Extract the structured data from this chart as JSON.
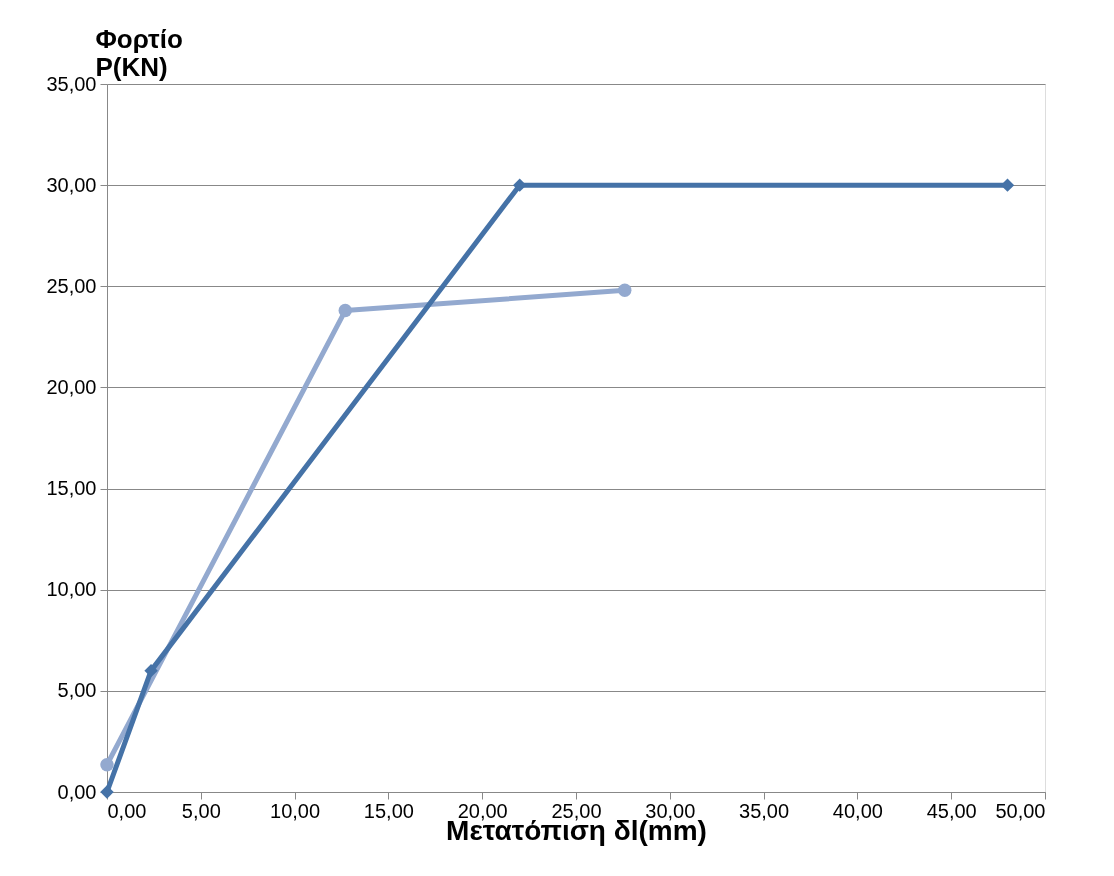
{
  "chart_data": {
    "type": "line",
    "xlabel": "Μετατόπιση δl(mm)",
    "ylabel": "Φορτίο\nP(KN)",
    "xlim": [
      0,
      50
    ],
    "ylim": [
      0,
      35
    ],
    "grid": "y",
    "xticks": [
      {
        "value": 0,
        "label": "0,00"
      },
      {
        "value": 5,
        "label": "5,00"
      },
      {
        "value": 10,
        "label": "10,00"
      },
      {
        "value": 15,
        "label": "15,00"
      },
      {
        "value": 20,
        "label": "20,00"
      },
      {
        "value": 25,
        "label": "25,00"
      },
      {
        "value": 30,
        "label": "30,00"
      },
      {
        "value": 35,
        "label": "35,00"
      },
      {
        "value": 40,
        "label": "40,00"
      },
      {
        "value": 45,
        "label": "45,00"
      },
      {
        "value": 50,
        "label": "50,00"
      }
    ],
    "yticks": [
      {
        "value": 0,
        "label": "0,00"
      },
      {
        "value": 5,
        "label": "5,00"
      },
      {
        "value": 10,
        "label": "10,00"
      },
      {
        "value": 15,
        "label": "15,00"
      },
      {
        "value": 20,
        "label": "20,00"
      },
      {
        "value": 25,
        "label": "25,00"
      },
      {
        "value": 30,
        "label": "30,00"
      },
      {
        "value": 35,
        "label": "35,00"
      }
    ],
    "series": [
      {
        "color": "#93a9cf",
        "marker": "circle",
        "x": [
          0,
          12.7,
          27.6
        ],
        "values": [
          1.35,
          23.8,
          24.8
        ]
      },
      {
        "color": "#4572a7",
        "marker": "diamond",
        "x": [
          0,
          2.35,
          22.0,
          48.0
        ],
        "values": [
          0,
          6.0,
          30.0,
          30.0
        ]
      }
    ]
  }
}
